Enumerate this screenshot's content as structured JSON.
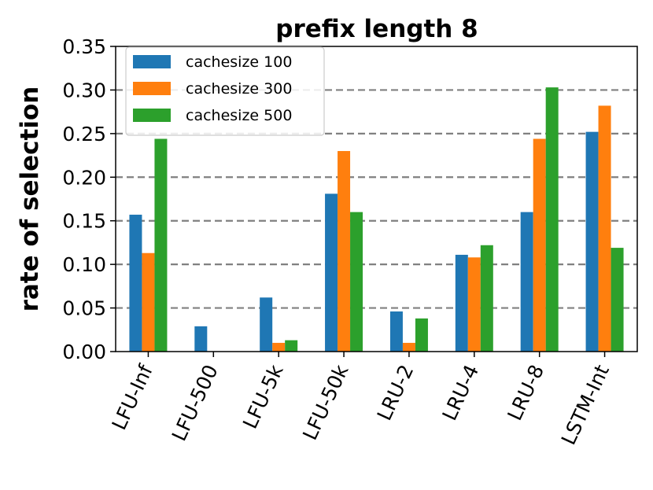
{
  "chart_data": {
    "type": "bar",
    "title": "prefix length 8",
    "xlabel": "",
    "ylabel": "rate of selection",
    "categories": [
      "LFU-Inf",
      "LFU-500",
      "LFU-5k",
      "LFU-50k",
      "LRU-2",
      "LRU-4",
      "LRU-8",
      "LSTM-Int"
    ],
    "series": [
      {
        "name": "cachesize 100",
        "color": "#1f77b4",
        "values": [
          0.157,
          0.029,
          0.062,
          0.181,
          0.046,
          0.111,
          0.16,
          0.252
        ]
      },
      {
        "name": "cachesize 300",
        "color": "#ff7f0e",
        "values": [
          0.113,
          0.0,
          0.01,
          0.23,
          0.01,
          0.108,
          0.244,
          0.282
        ]
      },
      {
        "name": "cachesize 500",
        "color": "#2ca02c",
        "values": [
          0.244,
          0.0,
          0.013,
          0.16,
          0.038,
          0.122,
          0.303,
          0.119
        ]
      }
    ],
    "ylim": [
      0,
      0.35
    ],
    "yticks": [
      "0.00",
      "0.05",
      "0.10",
      "0.15",
      "0.20",
      "0.25",
      "0.30",
      "0.35"
    ],
    "grid": "horizontal dashed",
    "legend_position": "top-left"
  }
}
